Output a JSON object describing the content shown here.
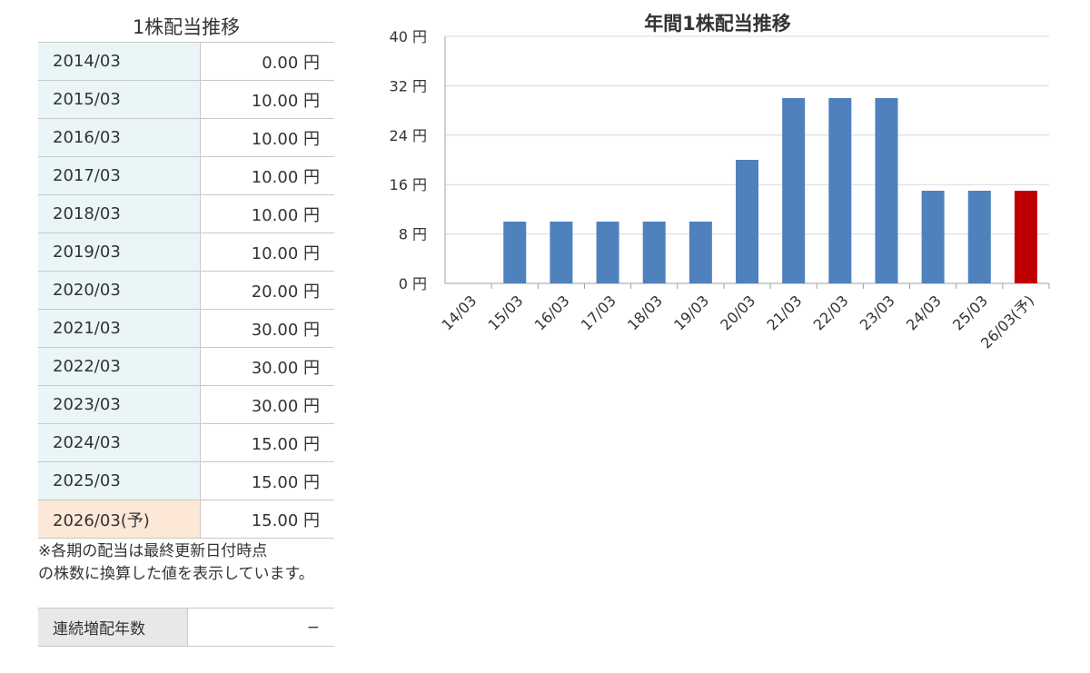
{
  "table": {
    "title": "1株配当推移",
    "rows": [
      {
        "year": "2014/03",
        "value": "0.00 円",
        "forecast": false
      },
      {
        "year": "2015/03",
        "value": "10.00 円",
        "forecast": false
      },
      {
        "year": "2016/03",
        "value": "10.00 円",
        "forecast": false
      },
      {
        "year": "2017/03",
        "value": "10.00 円",
        "forecast": false
      },
      {
        "year": "2018/03",
        "value": "10.00 円",
        "forecast": false
      },
      {
        "year": "2019/03",
        "value": "10.00 円",
        "forecast": false
      },
      {
        "year": "2020/03",
        "value": "20.00 円",
        "forecast": false
      },
      {
        "year": "2021/03",
        "value": "30.00 円",
        "forecast": false
      },
      {
        "year": "2022/03",
        "value": "30.00 円",
        "forecast": false
      },
      {
        "year": "2023/03",
        "value": "30.00 円",
        "forecast": false
      },
      {
        "year": "2024/03",
        "value": "15.00 円",
        "forecast": false
      },
      {
        "year": "2025/03",
        "value": "15.00 円",
        "forecast": false
      },
      {
        "year": "2026/03(予)",
        "value": "15.00 円",
        "forecast": true
      }
    ],
    "note_line1": "※各期の配当は最終更新日付時点",
    "note_line2": "の株数に換算した値を表示しています。",
    "streak_label": "連続増配年数",
    "streak_value": "−"
  },
  "colors": {
    "bar": "#4f81bd",
    "forecast_bar": "#c00000",
    "year_cell": "#eaf5f7",
    "forecast_cell": "#fde7d6"
  },
  "chart_data": {
    "type": "bar",
    "title": "年間1株配当推移",
    "categories": [
      "14/03",
      "15/03",
      "16/03",
      "17/03",
      "18/03",
      "19/03",
      "20/03",
      "21/03",
      "22/03",
      "23/03",
      "24/03",
      "25/03",
      "26/03(予)"
    ],
    "values": [
      0,
      10,
      10,
      10,
      10,
      10,
      20,
      30,
      30,
      30,
      15,
      15,
      15
    ],
    "forecast": [
      false,
      false,
      false,
      false,
      false,
      false,
      false,
      false,
      false,
      false,
      false,
      false,
      true
    ],
    "ylim": [
      0,
      40
    ],
    "yticks": [
      "0 円",
      "8 円",
      "16 円",
      "24 円",
      "32 円",
      "40 円"
    ],
    "grid": true,
    "legend": "none"
  }
}
